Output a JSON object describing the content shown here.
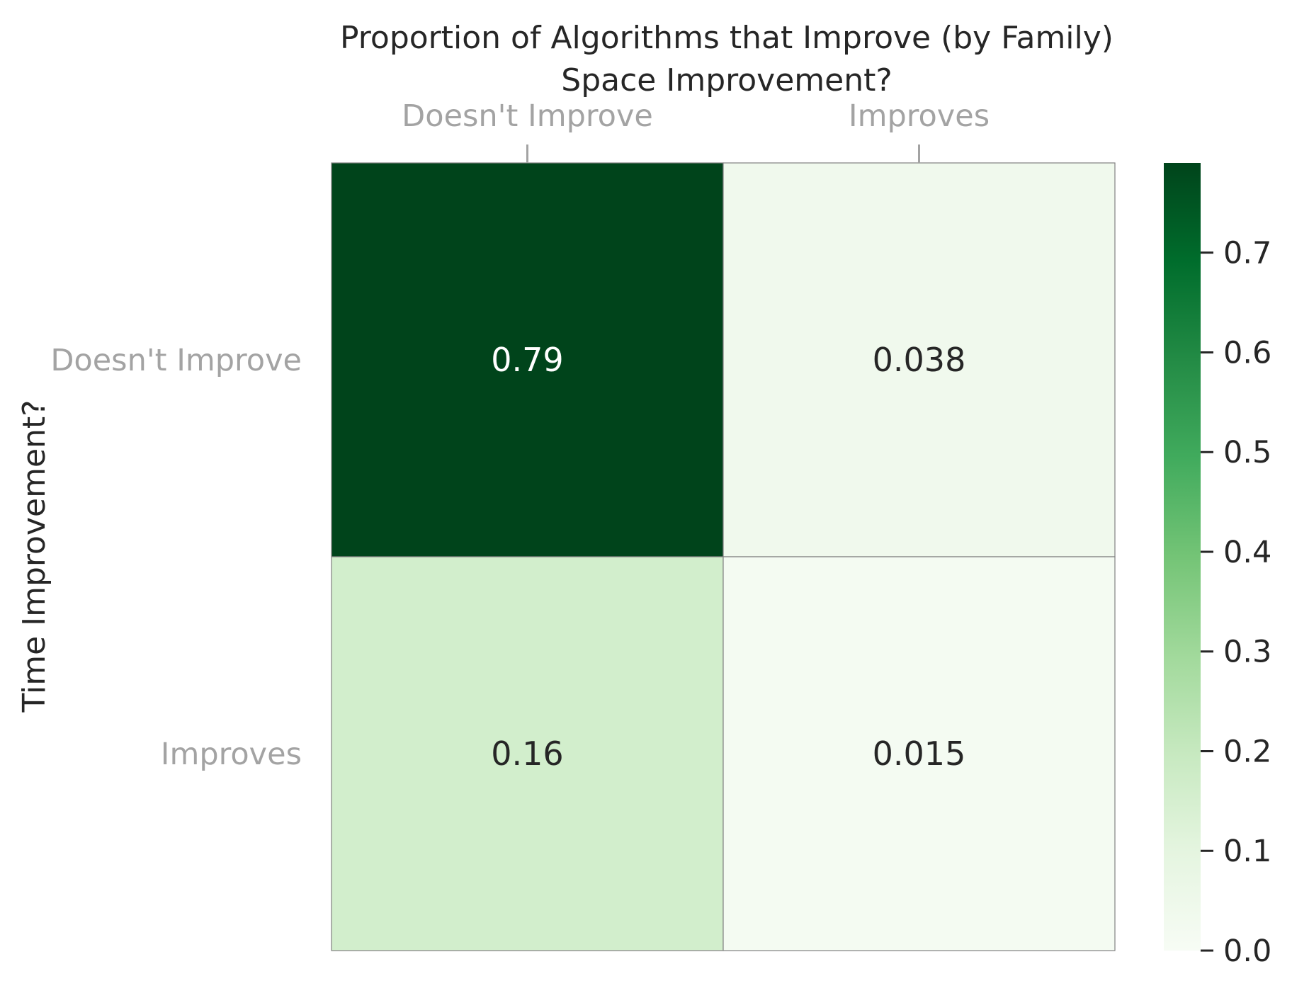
{
  "chart_data": {
    "type": "heatmap",
    "title": "Proportion of Algorithms that Improve (by Family)",
    "xlabel": "Space Improvement?",
    "ylabel": "Time Improvement?",
    "x_categories": [
      "Doesn't Improve",
      "Improves"
    ],
    "y_categories": [
      "Doesn't Improve",
      "Improves"
    ],
    "values": [
      [
        0.79,
        0.038
      ],
      [
        0.16,
        0.015
      ]
    ],
    "annotations": [
      [
        "0.79",
        "0.038"
      ],
      [
        "0.16",
        "0.015"
      ]
    ],
    "x_tick_position": "top",
    "colormap": "Greens",
    "colorbar": {
      "vmin": 0.0,
      "vmax": 0.79,
      "ticks": [
        0.0,
        0.1,
        0.2,
        0.3,
        0.4,
        0.5,
        0.6,
        0.7
      ],
      "tick_labels": [
        "0.0",
        "0.1",
        "0.2",
        "0.3",
        "0.4",
        "0.5",
        "0.6",
        "0.7"
      ]
    },
    "colors": {
      "text_dark": "#262626",
      "text_light": "#ffffff",
      "tick_label": "#a3a3a3",
      "cell_border": "#808080"
    }
  }
}
